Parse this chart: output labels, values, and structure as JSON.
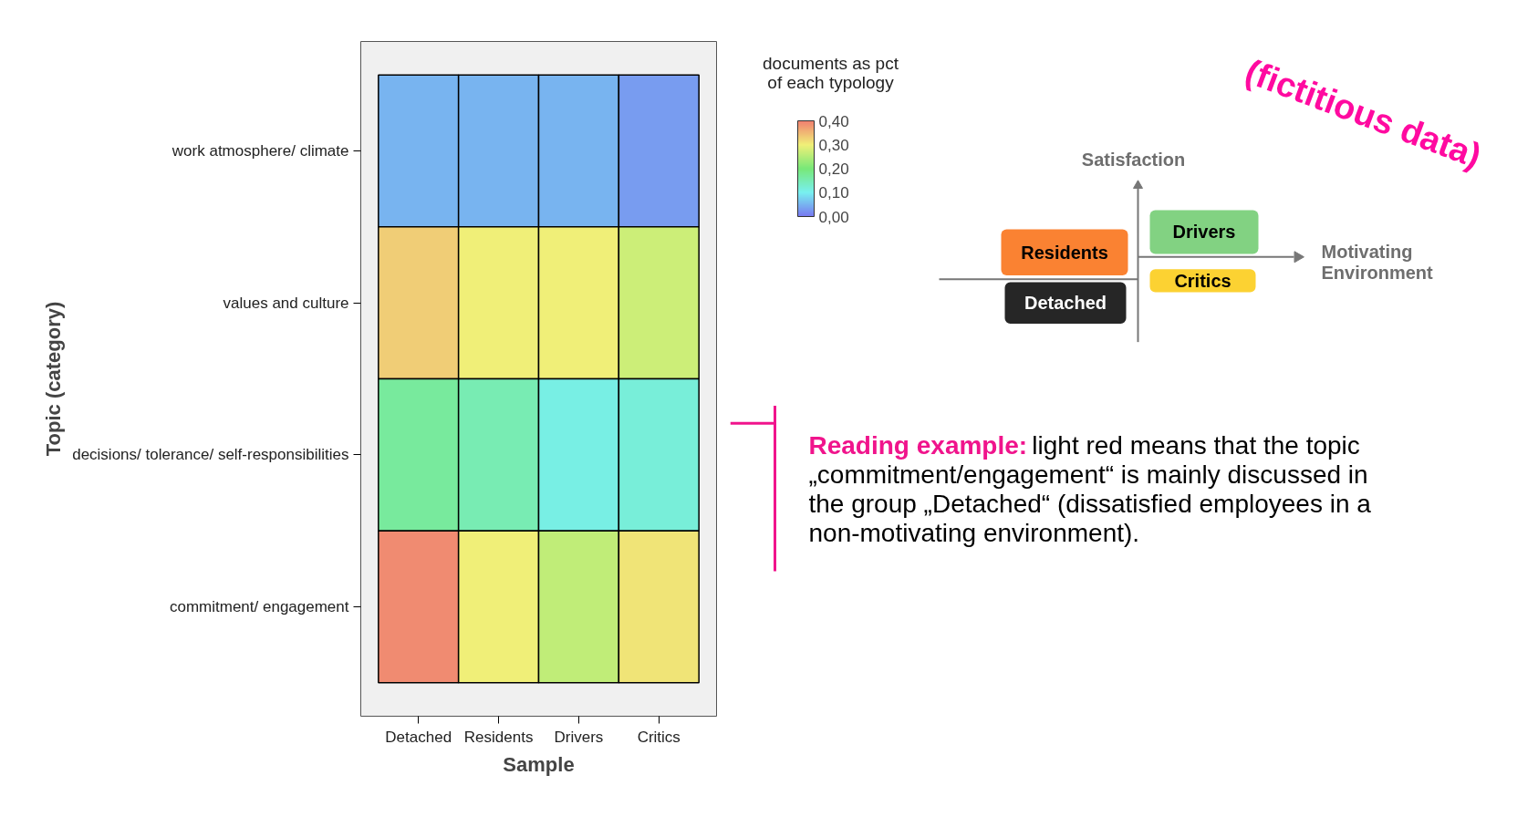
{
  "chart_data": {
    "type": "heatmap",
    "xlabel": "Sample",
    "ylabel": "Topic (category)",
    "clabel": "documents as pct of each typology",
    "categories": [
      "Detached",
      "Residents",
      "Drivers",
      "Critics"
    ],
    "y_categories": [
      "work atmosphere/ climate",
      "values and culture",
      "decisions/ tolerance/ self-responsibilities",
      "commitment/ engagement"
    ],
    "cells": [
      [
        0.05,
        0.05,
        0.05,
        0.03
      ],
      [
        0.33,
        0.3,
        0.3,
        0.27
      ],
      [
        0.17,
        0.15,
        0.11,
        0.12
      ],
      [
        0.39,
        0.3,
        0.26,
        0.31
      ]
    ],
    "clim": [
      0,
      0.4
    ],
    "cticks": [
      {
        "value": 0,
        "label": "0,00"
      },
      {
        "value": 0.1,
        "label": "0,10"
      },
      {
        "value": 0.2,
        "label": "0,20"
      },
      {
        "value": 0.3,
        "label": "0,30"
      },
      {
        "value": 0.4,
        "label": "0,40"
      }
    ],
    "colors": [
      "#7878f0",
      "#78f0f0",
      "#78e878",
      "#f0f078",
      "#f08070"
    ],
    "annotations": [
      "(fictitious data)",
      "Satisfaction",
      "Motivating Environment",
      "Residents",
      "Drivers",
      "Detached",
      "Critics",
      "Reading example:",
      "light red means that the topic „commitment/engagement“ is mainly discussed in the group „Detached“ (dissatisfied employees in a non-motivating environment)."
    ]
  }
}
